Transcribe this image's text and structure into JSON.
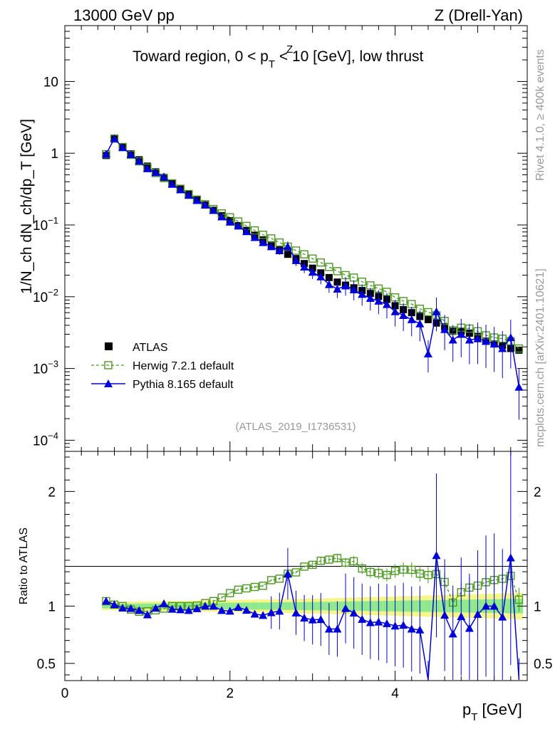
{
  "header": {
    "left": "13000 GeV pp",
    "right": "Z (Drell-Yan)"
  },
  "side_labels": {
    "rivet": "Rivet 4.1.0, ≥ 400k events",
    "mcplots": "mcplots.cern.ch [arXiv:2401.10621]"
  },
  "chart_data": {
    "type": "scatter",
    "title_parts": {
      "pre": "Toward region, 0 < p",
      "sup": "Z",
      "sub": "T",
      "post": " < 10 [GeV], low thrust"
    },
    "analysis_tag": "(ATLAS_2019_I1736531)",
    "xlabel": {
      "main": "p",
      "sub": "T",
      "unit": " [GeV]"
    },
    "ylabel": {
      "text": "1/N_ch dN_ch/dp_T [GeV]"
    },
    "ratio_ylabel": "Ratio to ATLAS",
    "xlim": [
      0,
      5.6
    ],
    "ylim_log": [
      7e-05,
      60
    ],
    "ratio_ylim": [
      0.35,
      2.35
    ],
    "x_ticks": [
      "0",
      "2",
      "4"
    ],
    "y_ticks": [
      {
        "mant": "10",
        "exp": "−4"
      },
      {
        "mant": "10",
        "exp": "−3"
      },
      {
        "mant": "10",
        "exp": "−2"
      },
      {
        "mant": "10",
        "exp": "−1"
      },
      {
        "mant": "1",
        "exp": ""
      },
      {
        "mant": "10",
        "exp": ""
      }
    ],
    "ratio_ticks": [
      "0.5",
      "1",
      "2"
    ],
    "legend": [
      {
        "name": "ATLAS",
        "color": "#000000",
        "marker": "square-filled"
      },
      {
        "name": "Herwig 7.2.1 default",
        "color": "#4a9a1f",
        "marker": "square-open",
        "line": "dashed"
      },
      {
        "name": "Pythia 8.165 default",
        "color": "#0000dd",
        "marker": "triangle-filled",
        "line": "solid"
      }
    ],
    "x": [
      0.5,
      0.6,
      0.7,
      0.8,
      0.9,
      1.0,
      1.1,
      1.2,
      1.3,
      1.4,
      1.5,
      1.6,
      1.7,
      1.8,
      1.9,
      2.0,
      2.1,
      2.2,
      2.3,
      2.4,
      2.5,
      2.6,
      2.7,
      2.8,
      2.9,
      3.0,
      3.1,
      3.2,
      3.3,
      3.4,
      3.5,
      3.6,
      3.7,
      3.8,
      3.9,
      4.0,
      4.1,
      4.2,
      4.3,
      4.4,
      4.5,
      4.6,
      4.7,
      4.8,
      4.9,
      5.0,
      5.1,
      5.2,
      5.3,
      5.4,
      5.5
    ],
    "series": [
      {
        "name": "ATLAS",
        "values": [
          0.93,
          1.58,
          1.22,
          0.98,
          0.81,
          0.66,
          0.55,
          0.46,
          0.38,
          0.32,
          0.27,
          0.225,
          0.19,
          0.16,
          0.135,
          0.115,
          0.098,
          0.084,
          0.072,
          0.062,
          0.053,
          0.046,
          0.039,
          0.034,
          0.029,
          0.025,
          0.0215,
          0.0185,
          0.016,
          0.0145,
          0.0133,
          0.0122,
          0.0111,
          0.0101,
          0.0092,
          0.0075,
          0.0066,
          0.006,
          0.0053,
          0.0048,
          0.0043,
          0.0038,
          0.0033,
          0.0033,
          0.0031,
          0.0028,
          0.0024,
          0.0022,
          0.0021,
          0.0019,
          0.0018
        ]
      },
      {
        "name": "Herwig 7.2.1 default",
        "values": [
          0.97,
          1.6,
          1.22,
          0.95,
          0.77,
          0.63,
          0.53,
          0.45,
          0.38,
          0.32,
          0.27,
          0.226,
          0.195,
          0.167,
          0.145,
          0.128,
          0.112,
          0.097,
          0.084,
          0.073,
          0.065,
          0.057,
          0.05,
          0.044,
          0.039,
          0.034,
          0.03,
          0.026,
          0.0227,
          0.02,
          0.0185,
          0.0162,
          0.0144,
          0.013,
          0.0117,
          0.0098,
          0.0087,
          0.0079,
          0.0068,
          0.0061,
          0.0055,
          0.0046,
          0.0034,
          0.0037,
          0.0036,
          0.0033,
          0.0029,
          0.0027,
          0.0026,
          0.0024,
          0.0019
        ]
      },
      {
        "name": "Pythia 8.165 default",
        "values": [
          0.97,
          1.6,
          1.2,
          0.96,
          0.78,
          0.61,
          0.54,
          0.47,
          0.37,
          0.31,
          0.26,
          0.22,
          0.19,
          0.16,
          0.13,
          0.11,
          0.097,
          0.081,
          0.067,
          0.057,
          0.05,
          0.044,
          0.05,
          0.032,
          0.026,
          0.022,
          0.019,
          0.0148,
          0.0128,
          0.0142,
          0.0125,
          0.0108,
          0.0095,
          0.0087,
          0.0078,
          0.0062,
          0.0055,
          0.0048,
          0.0042,
          0.0016,
          0.0062,
          0.0035,
          0.0025,
          0.003,
          0.0025,
          0.0026,
          0.0024,
          0.0022,
          0.0019,
          0.0027,
          0.00055
        ]
      }
    ]
  }
}
